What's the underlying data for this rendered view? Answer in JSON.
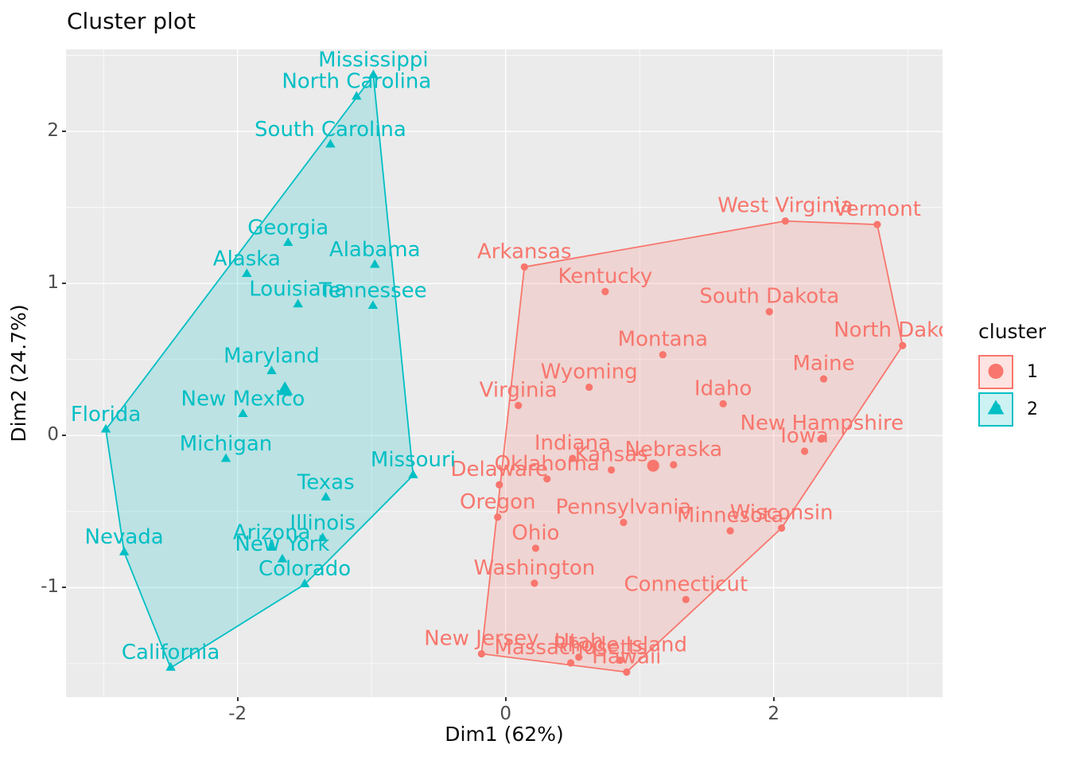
{
  "chart_data": {
    "type": "scatter",
    "title": "Cluster plot",
    "xlabel": "Dim1 (62%)",
    "ylabel": "Dim2 (24.7%)",
    "xlim": [
      -3.28,
      3.26
    ],
    "ylim": [
      -1.72,
      2.54
    ],
    "x_ticks": [
      -2,
      0,
      2
    ],
    "y_ticks": [
      -1,
      0,
      1,
      2
    ],
    "x_minor_ticks": [
      -3,
      -1,
      1,
      3
    ],
    "y_minor_ticks": [
      -1.5,
      -0.5,
      0.5,
      1.5,
      2.5
    ],
    "grid": true,
    "panel_bg": "#EBEBEB",
    "grid_major_color": "#FFFFFF",
    "grid_minor_color": "#FFFFFF",
    "axis_text_color": "#4d4d4d",
    "legend": {
      "title": "cluster",
      "position": "right",
      "entries": [
        {
          "label": "1",
          "shape": "circle",
          "color": "#F8766D",
          "key_fill": "#FDE3E1"
        },
        {
          "label": "2",
          "shape": "triangle",
          "color": "#00BFC4",
          "key_fill": "#CCF2F3"
        }
      ]
    },
    "clusters": [
      {
        "id": "1",
        "color": "#F8766D",
        "fill": "rgba(248,118,109,0.2)",
        "shape": "circle",
        "centroid": {
          "x": 1.101,
          "y": -0.198
        },
        "hull": [
          "Arkansas",
          "West Virginia",
          "Vermont",
          "North Dakota",
          "Wisconsin",
          "Hawaii",
          "New Jersey"
        ],
        "points": [
          {
            "label": "Arkansas",
            "x": 0.14,
            "y": 1.109
          },
          {
            "label": "Connecticut",
            "x": 1.345,
            "y": -1.078
          },
          {
            "label": "Delaware",
            "x": -0.047,
            "y": -0.323
          },
          {
            "label": "Hawaii",
            "x": 0.903,
            "y": -1.555
          },
          {
            "label": "Idaho",
            "x": 1.623,
            "y": 0.209
          },
          {
            "label": "Indiana",
            "x": 0.5,
            "y": -0.15
          },
          {
            "label": "Iowa",
            "x": 2.231,
            "y": -0.103
          },
          {
            "label": "Kansas",
            "x": 0.789,
            "y": -0.226
          },
          {
            "label": "Kentucky",
            "x": 0.743,
            "y": 0.947
          },
          {
            "label": "Maine",
            "x": 2.373,
            "y": 0.373
          },
          {
            "label": "Massachusetts",
            "x": 0.486,
            "y": -1.495
          },
          {
            "label": "Minnesota",
            "x": 1.676,
            "y": -0.626
          },
          {
            "label": "Montana",
            "x": 1.173,
            "y": 0.532
          },
          {
            "label": "Nebraska",
            "x": 1.253,
            "y": -0.192
          },
          {
            "label": "New Hampshire",
            "x": 2.36,
            "y": -0.018
          },
          {
            "label": "New Jersey",
            "x": -0.18,
            "y": -1.435
          },
          {
            "label": "North Dakota",
            "x": 2.962,
            "y": 0.592
          },
          {
            "label": "Ohio",
            "x": 0.224,
            "y": -0.741
          },
          {
            "label": "Oklahoma",
            "x": 0.309,
            "y": -0.285
          },
          {
            "label": "Oregon",
            "x": -0.059,
            "y": -0.536
          },
          {
            "label": "Pennsylvania",
            "x": 0.88,
            "y": -0.571
          },
          {
            "label": "Rhode Island",
            "x": 0.855,
            "y": -1.477
          },
          {
            "label": "South Dakota",
            "x": 1.968,
            "y": 0.815
          },
          {
            "label": "Utah",
            "x": 0.546,
            "y": -1.457
          },
          {
            "label": "Vermont",
            "x": 2.773,
            "y": 1.388
          },
          {
            "label": "Virginia",
            "x": 0.095,
            "y": 0.198
          },
          {
            "label": "Washington",
            "x": 0.215,
            "y": -0.971
          },
          {
            "label": "West Virginia",
            "x": 2.087,
            "y": 1.411
          },
          {
            "label": "Wisconsin",
            "x": 2.059,
            "y": -0.608
          },
          {
            "label": "Wyoming",
            "x": 0.623,
            "y": 0.318
          }
        ]
      },
      {
        "id": "2",
        "color": "#00BFC4",
        "fill": "rgba(0,191,196,0.2)",
        "shape": "triangle",
        "centroid": {
          "x": -1.647,
          "y": 0.297
        },
        "hull": [
          "Mississippi",
          "Missouri",
          "Colorado",
          "California",
          "Nevada",
          "Florida"
        ],
        "points": [
          {
            "label": "Alabama",
            "x": -0.976,
            "y": 1.122
          },
          {
            "label": "Alaska",
            "x": -1.931,
            "y": 1.062
          },
          {
            "label": "Arizona",
            "x": -1.745,
            "y": -0.738
          },
          {
            "label": "California",
            "x": -2.499,
            "y": -1.527
          },
          {
            "label": "Colorado",
            "x": -1.499,
            "y": -0.978
          },
          {
            "label": "Florida",
            "x": -2.983,
            "y": 0.039
          },
          {
            "label": "Georgia",
            "x": -1.623,
            "y": 1.266
          },
          {
            "label": "Illinois",
            "x": -1.365,
            "y": -0.675
          },
          {
            "label": "Louisiana",
            "x": -1.549,
            "y": 0.862
          },
          {
            "label": "Maryland",
            "x": -1.746,
            "y": 0.423
          },
          {
            "label": "Michigan",
            "x": -2.087,
            "y": -0.154
          },
          {
            "label": "Mississippi",
            "x": -0.987,
            "y": 2.37
          },
          {
            "label": "Missouri",
            "x": -0.69,
            "y": -0.261
          },
          {
            "label": "Nevada",
            "x": -2.846,
            "y": -0.768
          },
          {
            "label": "New Mexico",
            "x": -1.96,
            "y": 0.141
          },
          {
            "label": "New York",
            "x": -1.666,
            "y": -0.815
          },
          {
            "label": "North Carolina",
            "x": -1.112,
            "y": 2.228
          },
          {
            "label": "South Carolina",
            "x": -1.307,
            "y": 1.913
          },
          {
            "label": "Tennessee",
            "x": -0.99,
            "y": 0.852
          },
          {
            "label": "Texas",
            "x": -1.341,
            "y": -0.408
          }
        ]
      }
    ]
  }
}
